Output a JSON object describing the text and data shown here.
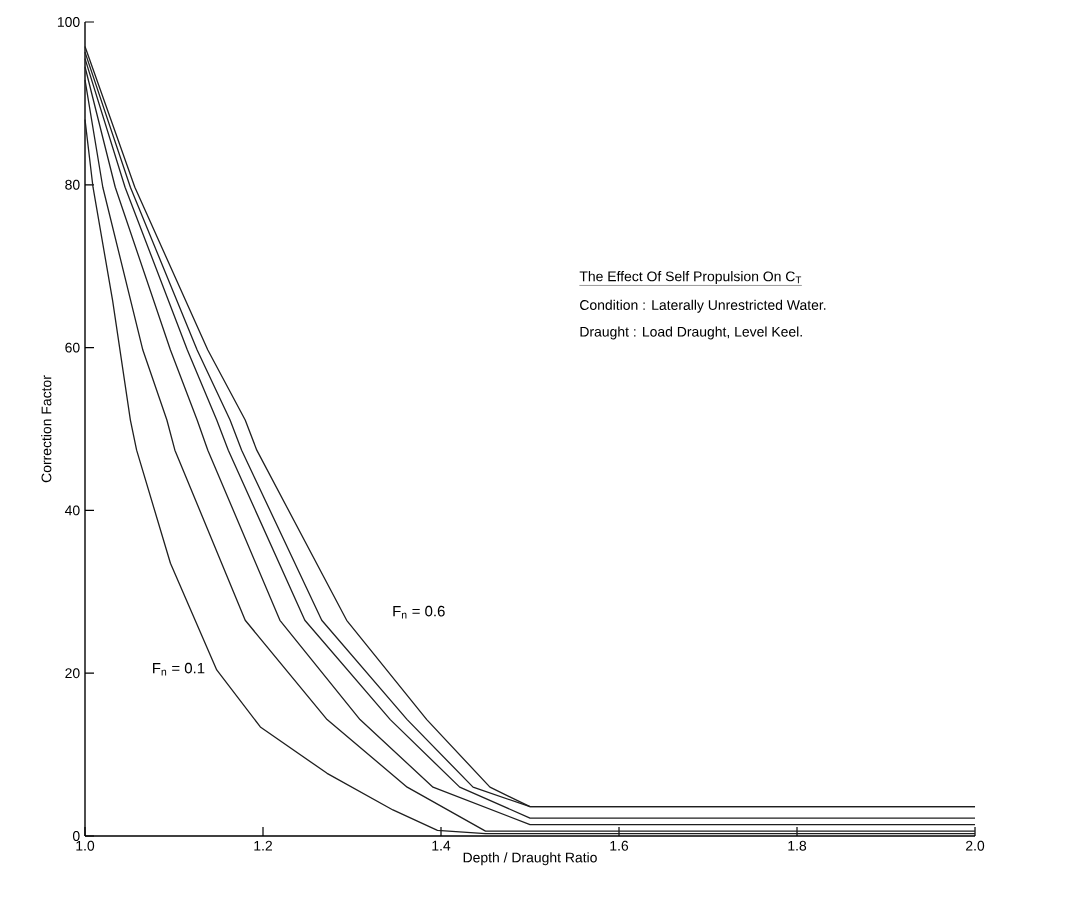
{
  "chart_data": {
    "type": "line",
    "title": "The Effect Of Self Propulsion On C$_{T}$",
    "xlabel": "Depth / Draught Ratio",
    "ylabel": "Correction Factor",
    "xlim": [
      1.0,
      2.0
    ],
    "ylim": [
      0,
      100
    ],
    "xticks": [
      {
        "value": 1.0,
        "label": "1.0"
      },
      {
        "value": 1.2,
        "label": "1.2"
      },
      {
        "value": 1.4,
        "label": "1.4"
      },
      {
        "value": 1.6,
        "label": "1.6"
      },
      {
        "value": 1.8,
        "label": "1.8"
      },
      {
        "value": 2.0,
        "label": "2.0"
      }
    ],
    "yticks": [
      0,
      20,
      40,
      60,
      80,
      100
    ],
    "marker": "none",
    "line_style": "solid",
    "series": [
      {
        "color": "#1e1e1e",
        "x": [
          1.0,
          1.009,
          1.031,
          1.051,
          1.058,
          1.096,
          1.148,
          1.197,
          1.272,
          1.346,
          1.396,
          1.45,
          2.0
        ],
        "values": [
          88,
          79.7,
          65.8,
          51.1,
          47.4,
          33.5,
          20.4,
          13.4,
          7.7,
          3.2,
          0.7,
          0.3,
          0.3
        ]
      },
      {
        "color": "#1e1e1e",
        "x": [
          1.0,
          1.02,
          1.065,
          1.092,
          1.101,
          1.18,
          1.272,
          1.362,
          1.45,
          2.0
        ],
        "values": [
          92.9,
          79.7,
          59.7,
          51.1,
          47.4,
          26.5,
          14.3,
          6.0,
          0.6,
          0.6
        ]
      },
      {
        "color": "#1e1e1e",
        "x": [
          1.0,
          1.034,
          1.096,
          1.126,
          1.138,
          1.219,
          1.309,
          1.391,
          1.5,
          2.0
        ],
        "values": [
          94.5,
          79.7,
          59.7,
          51.1,
          47.4,
          26.5,
          14.3,
          6.0,
          1.4,
          1.4
        ]
      },
      {
        "color": "#1e1e1e",
        "x": [
          1.0,
          1.045,
          1.115,
          1.148,
          1.161,
          1.247,
          1.343,
          1.421,
          1.5,
          2.0
        ],
        "values": [
          95.5,
          79.7,
          59.7,
          51.1,
          47.4,
          26.5,
          14.3,
          6.0,
          2.2,
          2.2
        ]
      },
      {
        "color": "#1e1e1e",
        "x": [
          1.0,
          1.051,
          1.126,
          1.163,
          1.176,
          1.266,
          1.362,
          1.436,
          1.5,
          2.0
        ],
        "values": [
          96.3,
          79.7,
          59.7,
          51.1,
          47.4,
          26.5,
          14.3,
          6.0,
          3.6,
          3.6
        ]
      },
      {
        "color": "#1e1e1e",
        "x": [
          1.0,
          1.056,
          1.138,
          1.18,
          1.193,
          1.294,
          1.384,
          1.455,
          1.5,
          2.0
        ],
        "values": [
          97,
          79.7,
          59.7,
          51.1,
          47.4,
          26.5,
          14.3,
          6.0,
          3.6,
          3.6
        ]
      }
    ],
    "annotations": [
      "F$_{n}$ = 0.1",
      "F$_{n}$ = 0.6",
      "Condition  :  Laterally Unrestricted Water.",
      "Draught  :  Load Draught, Level Keel."
    ]
  }
}
